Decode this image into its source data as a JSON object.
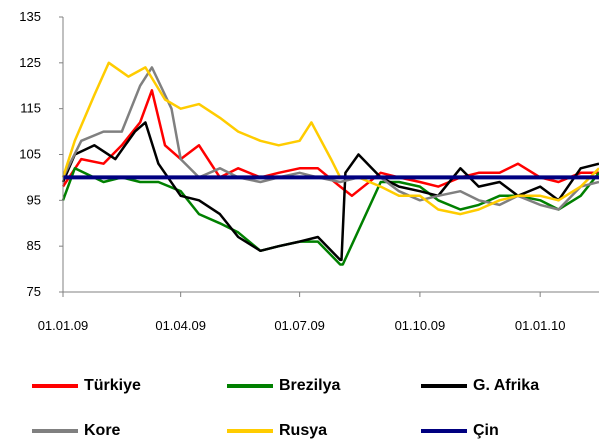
{
  "chart_data": {
    "type": "line",
    "title": "",
    "xlabel": "",
    "ylabel": "",
    "ylim": [
      75,
      135
    ],
    "yticks": [
      75,
      85,
      95,
      105,
      115,
      125,
      135
    ],
    "xticks": [
      "01.01.09",
      "01.04.09",
      "01.07.09",
      "01.10.09",
      "01.01.10"
    ],
    "x_start": "01.01.09",
    "x_end": "15.02.10",
    "grid": false,
    "legend_position": "bottom",
    "series": [
      {
        "name": "Türkiye",
        "color": "#ff0000",
        "x": [
          "01.01.09",
          "15.01.09",
          "01.02.09",
          "15.02.09",
          "01.03.09",
          "10.03.09",
          "20.03.09",
          "01.04.09",
          "15.04.09",
          "01.05.09",
          "15.05.09",
          "01.06.09",
          "15.06.09",
          "01.07.09",
          "15.07.09",
          "01.08.09",
          "10.08.09",
          "01.09.09",
          "15.09.09",
          "01.10.09",
          "15.10.09",
          "01.11.09",
          "15.11.09",
          "01.12.09",
          "15.12.09",
          "01.01.10",
          "15.01.10",
          "01.02.10",
          "15.02.10"
        ],
        "values": [
          98,
          104,
          103,
          107,
          112,
          119,
          107,
          104,
          107,
          100,
          102,
          100,
          101,
          102,
          102,
          98,
          96,
          101,
          100,
          99,
          98,
          100,
          101,
          101,
          103,
          100,
          99,
          101,
          101
        ]
      },
      {
        "name": "Brezilya",
        "color": "#008000",
        "x": [
          "01.01.09",
          "10.01.09",
          "01.02.09",
          "15.02.09",
          "01.03.09",
          "15.03.09",
          "01.04.09",
          "15.04.09",
          "01.05.09",
          "15.05.09",
          "01.06.09",
          "15.06.09",
          "01.07.09",
          "15.07.09",
          "01.08.09",
          "03.08.09",
          "01.09.09",
          "15.09.09",
          "01.10.09",
          "15.10.09",
          "01.11.09",
          "15.11.09",
          "01.12.09",
          "15.12.09",
          "01.01.10",
          "15.01.10",
          "01.02.10",
          "15.02.10"
        ],
        "values": [
          95,
          102,
          99,
          100,
          99,
          99,
          97,
          92,
          90,
          88,
          84,
          85,
          86,
          86,
          81,
          81,
          99,
          99,
          98,
          95,
          93,
          94,
          96,
          96,
          95,
          93,
          96,
          101
        ]
      },
      {
        "name": "G. Afrika",
        "color": "#000000",
        "x": [
          "01.01.09",
          "10.01.09",
          "25.01.09",
          "10.02.09",
          "25.02.09",
          "05.03.09",
          "15.03.09",
          "01.04.09",
          "15.04.09",
          "01.05.09",
          "15.05.09",
          "01.06.09",
          "15.06.09",
          "01.07.09",
          "15.07.09",
          "01.08.09",
          "02.08.09",
          "05.08.09",
          "15.08.09",
          "01.09.09",
          "15.09.09",
          "01.10.09",
          "15.10.09",
          "01.11.09",
          "15.11.09",
          "01.12.09",
          "15.12.09",
          "01.01.10",
          "15.01.10",
          "01.02.10",
          "15.02.10"
        ],
        "values": [
          99,
          105,
          107,
          104,
          110,
          112,
          103,
          96,
          95,
          92,
          87,
          84,
          85,
          86,
          87,
          82,
          82,
          101,
          105,
          100,
          98,
          97,
          96,
          102,
          98,
          99,
          96,
          98,
          95,
          102,
          103
        ]
      },
      {
        "name": "Kore",
        "color": "#808080",
        "x": [
          "01.01.09",
          "15.01.09",
          "01.02.09",
          "15.02.09",
          "01.03.09",
          "10.03.09",
          "25.03.09",
          "01.04.09",
          "15.04.09",
          "01.05.09",
          "15.05.09",
          "01.06.09",
          "15.06.09",
          "01.07.09",
          "15.07.09",
          "01.08.09",
          "15.08.09",
          "01.09.09",
          "15.09.09",
          "01.10.09",
          "15.10.09",
          "01.11.09",
          "15.11.09",
          "01.12.09",
          "15.12.09",
          "01.01.10",
          "15.01.10",
          "01.02.10",
          "15.02.10"
        ],
        "values": [
          100,
          108,
          110,
          110,
          120,
          124,
          115,
          104,
          100,
          102,
          100,
          99,
          100,
          101,
          100,
          99,
          100,
          100,
          97,
          95,
          96,
          97,
          95,
          94,
          96,
          94,
          93,
          98,
          99
        ]
      },
      {
        "name": "Rusya",
        "color": "#ffcc00",
        "x": [
          "01.01.09",
          "10.01.09",
          "25.01.09",
          "05.02.09",
          "20.02.09",
          "05.03.09",
          "20.03.09",
          "01.04.09",
          "15.04.09",
          "01.05.09",
          "15.05.09",
          "01.06.09",
          "15.06.09",
          "01.07.09",
          "10.07.09",
          "25.07.09",
          "01.08.09",
          "15.08.09",
          "01.09.09",
          "15.09.09",
          "01.10.09",
          "15.10.09",
          "01.11.09",
          "15.11.09",
          "01.12.09",
          "15.12.09",
          "01.01.10",
          "15.01.10",
          "01.02.10",
          "15.02.10"
        ],
        "values": [
          100,
          108,
          118,
          125,
          122,
          124,
          117,
          115,
          116,
          113,
          110,
          108,
          107,
          108,
          112,
          104,
          100,
          100,
          98,
          96,
          96,
          93,
          92,
          93,
          95,
          96,
          96,
          95,
          98,
          102
        ]
      },
      {
        "name": "Çin",
        "color": "#000080",
        "x": [
          "01.01.09",
          "15.02.10"
        ],
        "values": [
          100,
          100
        ]
      }
    ]
  },
  "legend": [
    {
      "name": "Türkiye",
      "color": "#ff0000"
    },
    {
      "name": "Brezilya",
      "color": "#008000"
    },
    {
      "name": "G. Afrika",
      "color": "#000000"
    },
    {
      "name": "Kore",
      "color": "#808080"
    },
    {
      "name": "Rusya",
      "color": "#ffcc00"
    },
    {
      "name": "Çin",
      "color": "#000080"
    }
  ]
}
